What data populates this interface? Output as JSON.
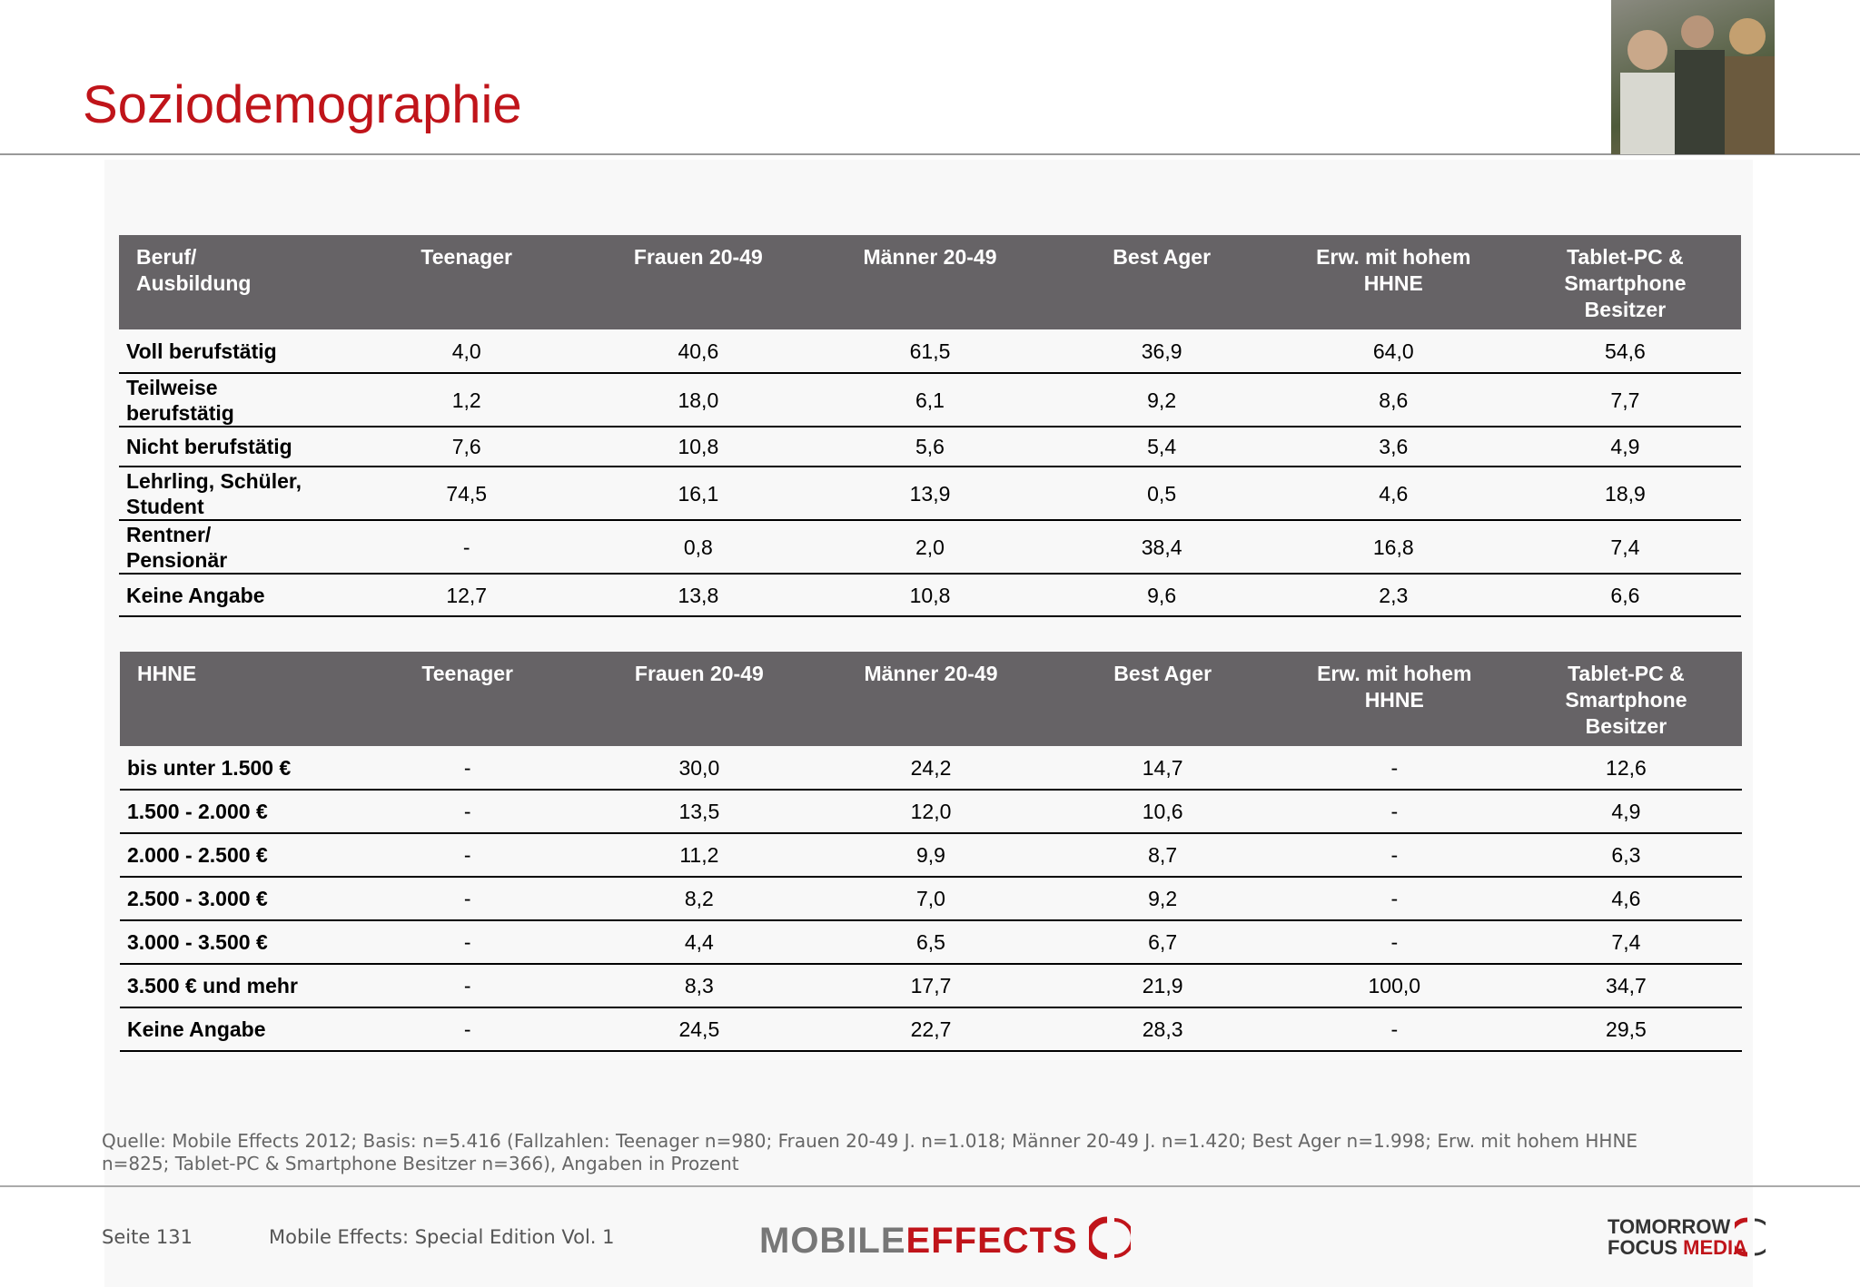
{
  "header": {
    "title": "Soziodemographie"
  },
  "tables": [
    {
      "columns": [
        "Beruf/\nAusbildung",
        "Teenager",
        "Frauen 20-49",
        "Männer 20-49",
        "Best Ager",
        "Erw. mit hohem\nHHNE",
        "Tablet-PC &\nSmartphone\nBesitzer"
      ],
      "rows": [
        [
          "Voll berufstätig",
          "4,0",
          "40,6",
          "61,5",
          "36,9",
          "64,0",
          "54,6"
        ],
        [
          "Teilweise\nberufstätig",
          "1,2",
          "18,0",
          "6,1",
          "9,2",
          "8,6",
          "7,7"
        ],
        [
          "Nicht berufstätig",
          "7,6",
          "10,8",
          "5,6",
          "5,4",
          "3,6",
          "4,9"
        ],
        [
          "Lehrling, Schüler,\nStudent",
          "74,5",
          "16,1",
          "13,9",
          "0,5",
          "4,6",
          "18,9"
        ],
        [
          "Rentner/\nPensionär",
          "-",
          "0,8",
          "2,0",
          "38,4",
          "16,8",
          "7,4"
        ],
        [
          "Keine Angabe",
          "12,7",
          "13,8",
          "10,8",
          "9,6",
          "2,3",
          "6,6"
        ]
      ]
    },
    {
      "columns": [
        "HHNE",
        "Teenager",
        "Frauen 20-49",
        "Männer 20-49",
        "Best Ager",
        "Erw. mit hohem\nHHNE",
        "Tablet-PC &\nSmartphone\nBesitzer"
      ],
      "rows": [
        [
          "bis unter 1.500 €",
          "-",
          "30,0",
          "24,2",
          "14,7",
          "-",
          "12,6"
        ],
        [
          "1.500 - 2.000 €",
          "-",
          "13,5",
          "12,0",
          "10,6",
          "-",
          "4,9"
        ],
        [
          "2.000 - 2.500 €",
          "-",
          "11,2",
          "9,9",
          "8,7",
          "-",
          "6,3"
        ],
        [
          "2.500 - 3.000 €",
          "-",
          "8,2",
          "7,0",
          "9,2",
          "-",
          "4,6"
        ],
        [
          "3.000 - 3.500 €",
          "-",
          "4,4",
          "6,5",
          "6,7",
          "-",
          "7,4"
        ],
        [
          "3.500 € und mehr",
          "-",
          "8,3",
          "17,7",
          "21,9",
          "100,0",
          "34,7"
        ],
        [
          "Keine Angabe",
          "-",
          "24,5",
          "22,7",
          "28,3",
          "-",
          "29,5"
        ]
      ]
    }
  ],
  "footer": {
    "source": "Quelle: Mobile Effects 2012; Basis: n=5.416 (Fallzahlen: Teenager n=980; Frauen 20-49 J. n=1.018; Männer 20-49 J. n=1.420; Best Ager n=1.998; Erw. mit hohem HHNE n=825; Tablet-PC & Smartphone Besitzer n=366), Angaben in Prozent",
    "page": "Seite 131",
    "edition": "Mobile Effects: Special Edition Vol. 1",
    "logo_mobile": "MOBILE",
    "logo_effects": "EFFECTS",
    "logo_tomorrow": "TOMORROW",
    "logo_focus": "FOCUS",
    "logo_media": "MEDIA"
  }
}
